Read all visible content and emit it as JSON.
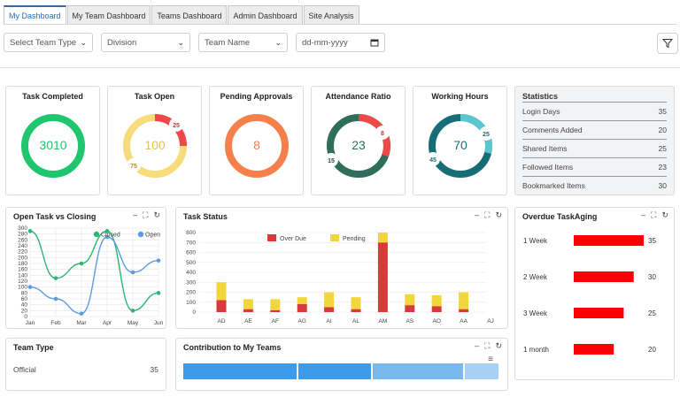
{
  "tabs": [
    "My Dashboard",
    "My Team Dashboard",
    "Teams Dashboard",
    "Admin Dashboard",
    "Site Analysis"
  ],
  "filters": {
    "team_type": "Select Team Type",
    "division": "Division",
    "team_name": "Team Name",
    "date_placeholder": "dd-mm-yyyy"
  },
  "kpis": [
    {
      "title": "Task Completed",
      "value": "3010",
      "color": "#1ec66e"
    },
    {
      "title": "Task Open",
      "value": "100",
      "color": "#f6dc7a",
      "badge_a": "25",
      "badge_b": "75",
      "accent": "#f04848"
    },
    {
      "title": "Pending Approvals",
      "value": "8",
      "color": "#f5804c"
    },
    {
      "title": "Attendance Ratio",
      "value": "23",
      "color": "#2e6e5a",
      "badge_a": "8",
      "badge_b": "15",
      "accent": "#f04848"
    },
    {
      "title": "Working Hours",
      "value": "70",
      "color": "#176d77",
      "badge_a": "25",
      "badge_b": "45",
      "accent": "#5cc6d0"
    }
  ],
  "statistics": {
    "title": "Statistics",
    "rows": [
      {
        "label": "Login Days",
        "value": "35"
      },
      {
        "label": "Comments Added",
        "value": "20"
      },
      {
        "label": "Shared Items",
        "value": "25"
      },
      {
        "label": "Followed Items",
        "value": "23"
      },
      {
        "label": "Bookmarked Items",
        "value": "30"
      }
    ]
  },
  "panels": {
    "open_task": "Open Task vs Closing",
    "task_status": "Task Status",
    "overdue": "Overdue TaskAging",
    "team_type": "Team Type",
    "contribution": "Contribution to My Teams"
  },
  "team_type_rows": [
    {
      "label": "Official",
      "value": "35"
    }
  ],
  "chart_data": [
    {
      "type": "line",
      "title": "Open Task vs Closing",
      "categories": [
        "Jan",
        "Feb",
        "Mar",
        "Apr",
        "May",
        "Jun"
      ],
      "ylim": [
        0,
        300
      ],
      "yticks": [
        0,
        20,
        40,
        60,
        80,
        100,
        120,
        140,
        160,
        180,
        200,
        220,
        240,
        260,
        280,
        300
      ],
      "series": [
        {
          "name": "Closed",
          "color": "#2bb673",
          "values": [
            290,
            130,
            180,
            290,
            20,
            80
          ]
        },
        {
          "name": "Open",
          "color": "#5b9be6",
          "values": [
            100,
            60,
            10,
            270,
            150,
            190
          ]
        }
      ],
      "legend_position": "top-right",
      "grid": true
    },
    {
      "type": "bar",
      "title": "Task Status",
      "categories": [
        "AD",
        "AE",
        "AF",
        "AG",
        "AI",
        "AL",
        "AM",
        "AS",
        "AO",
        "AA",
        "AJ"
      ],
      "ylim": [
        0,
        800
      ],
      "yticks": [
        0,
        100,
        200,
        300,
        400,
        500,
        600,
        700,
        800
      ],
      "series": [
        {
          "name": "Over Due",
          "color": "#d63a3a",
          "values": [
            120,
            30,
            20,
            80,
            50,
            30,
            700,
            70,
            60,
            30,
            0
          ]
        },
        {
          "name": "Pending",
          "color": "#f2d63e",
          "values": [
            180,
            100,
            110,
            70,
            150,
            120,
            100,
            110,
            110,
            170,
            0
          ]
        }
      ],
      "stacked": true,
      "legend_position": "top",
      "grid": true
    },
    {
      "type": "bar",
      "title": "Overdue TaskAging",
      "orientation": "horizontal",
      "categories": [
        "1 Week",
        "2 Week",
        "3 Week",
        "1 month"
      ],
      "values": [
        35,
        30,
        25,
        20
      ],
      "color": "#ff0000"
    }
  ]
}
